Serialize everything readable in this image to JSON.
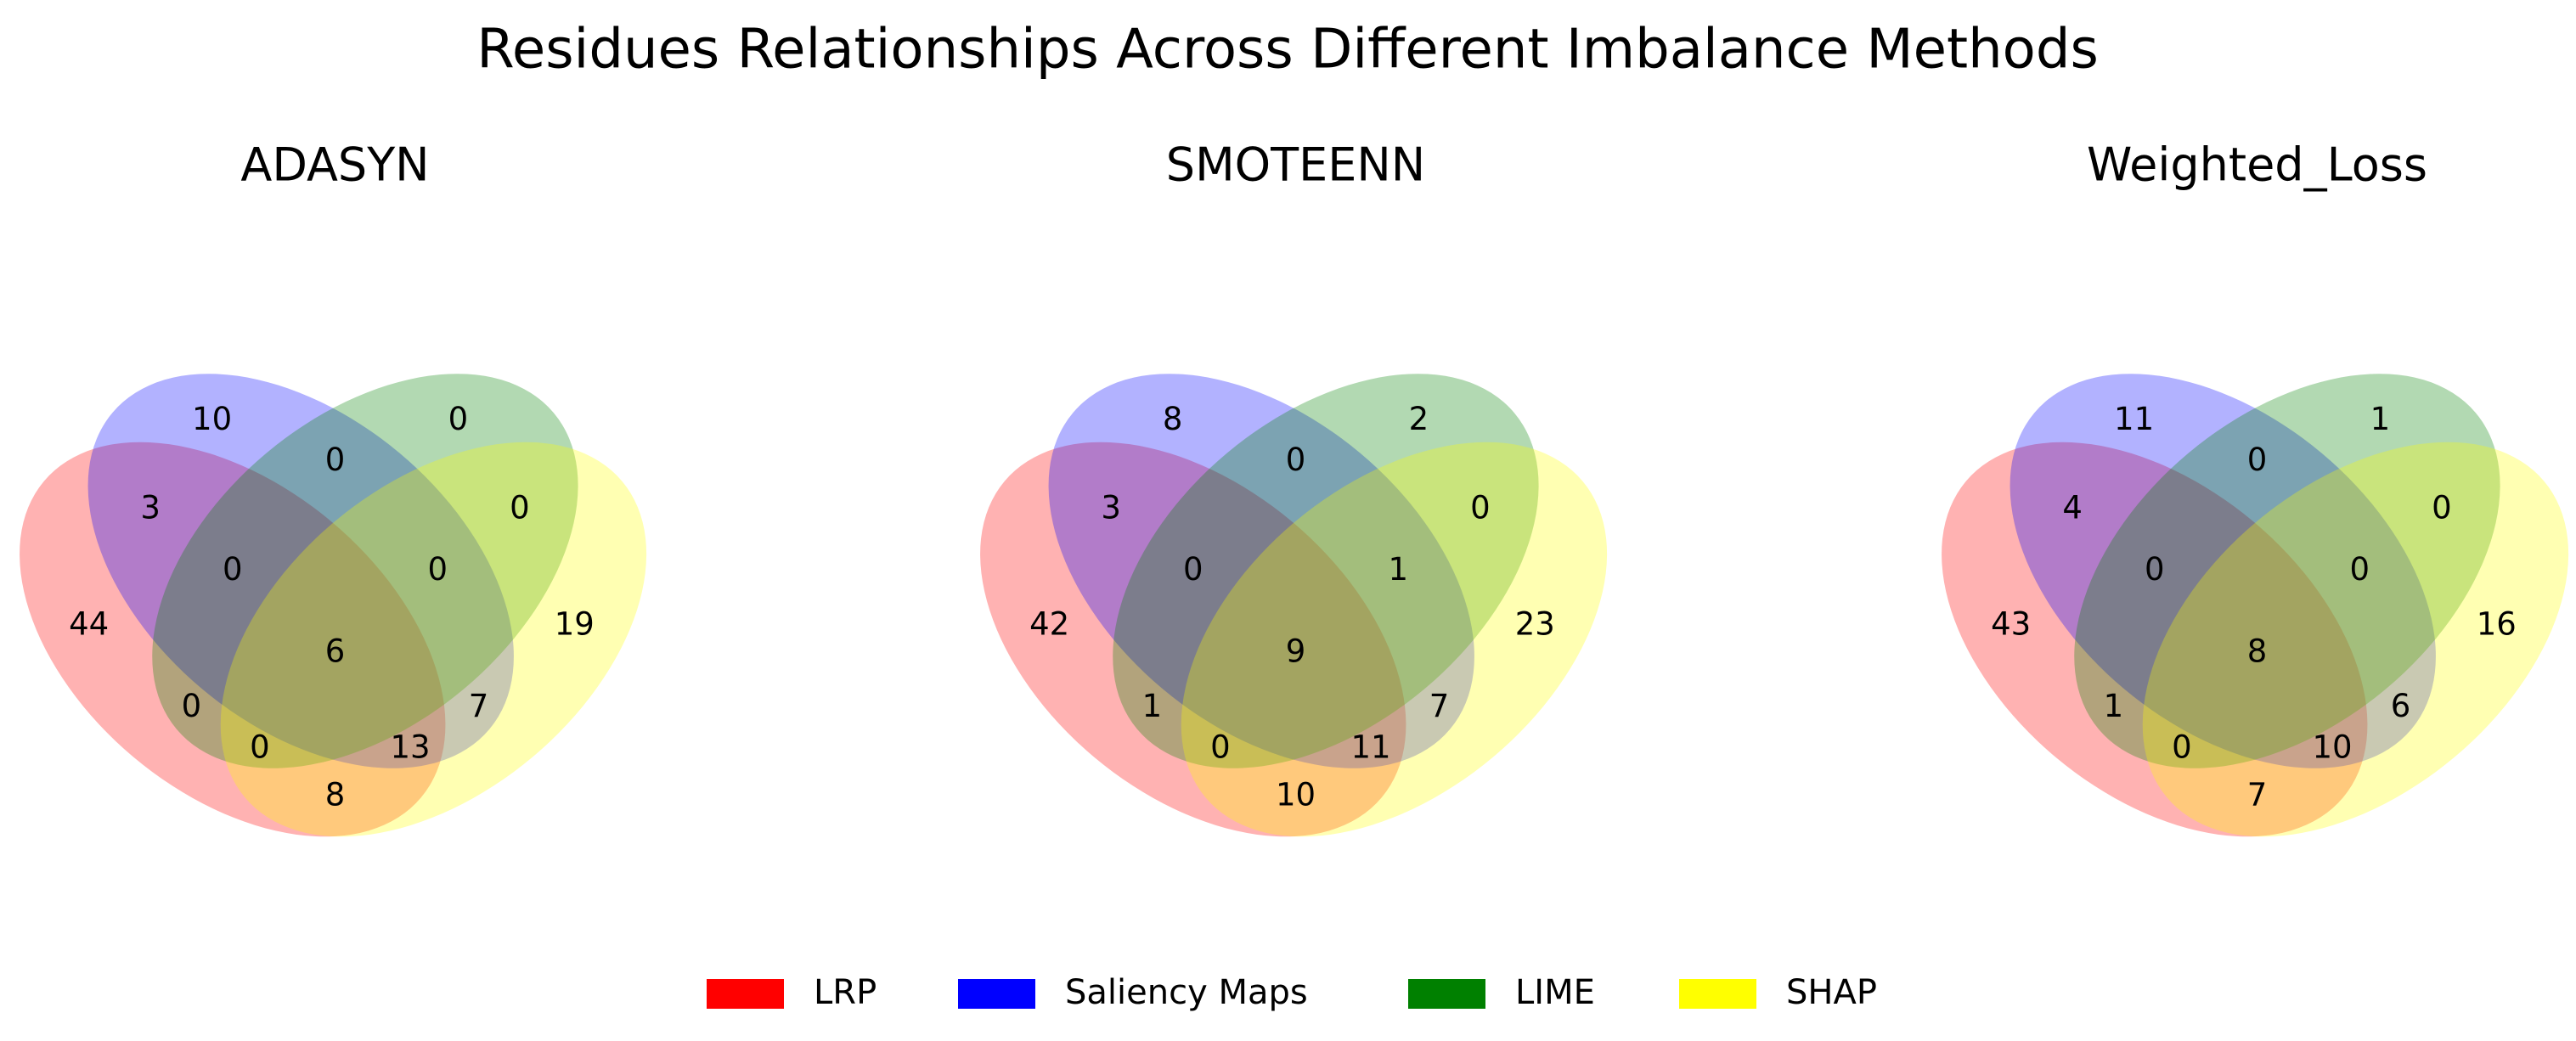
{
  "title": "Residues Relationships Across Different Imbalance Methods",
  "sets": [
    {
      "name": "LRP",
      "color": "#ff0000"
    },
    {
      "name": "Saliency Maps",
      "color": "#0000ff"
    },
    {
      "name": "LIME",
      "color": "#008000"
    },
    {
      "name": "SHAP",
      "color": "#ffff00"
    }
  ],
  "chart_data": [
    {
      "type": "venn",
      "title": "ADASYN",
      "values": [
        44,
        10,
        0,
        19,
        3,
        0,
        8,
        0,
        7,
        0,
        0,
        13,
        0,
        0,
        6
      ]
    },
    {
      "type": "venn",
      "title": "SMOTEENN",
      "values": [
        42,
        8,
        2,
        23,
        3,
        1,
        10,
        0,
        7,
        0,
        0,
        11,
        0,
        1,
        9
      ]
    },
    {
      "type": "venn",
      "title": "Weighted_Loss",
      "values": [
        43,
        11,
        1,
        16,
        4,
        1,
        7,
        0,
        6,
        0,
        0,
        10,
        0,
        0,
        8
      ]
    }
  ]
}
